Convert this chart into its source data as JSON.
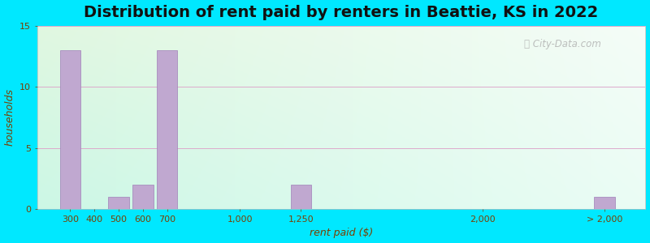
{
  "title": "Distribution of rent paid by renters in Beattie, KS in 2022",
  "xlabel": "rent paid ($)",
  "ylabel": "households",
  "categories": [
    "300",
    "400",
    "500",
    "600",
    "700",
    "1,000",
    "1,250",
    "2,000",
    "> 2,000"
  ],
  "values": [
    13,
    0,
    1,
    2,
    13,
    0,
    2,
    0,
    1
  ],
  "bar_color": "#c0a8d0",
  "bar_edge_color": "#a080b8",
  "ylim": [
    0,
    15
  ],
  "yticks": [
    0,
    5,
    10,
    15
  ],
  "background_outer": "#00e8ff",
  "bg_topleft": [
    0.88,
    0.97,
    0.88
  ],
  "bg_topright": [
    0.96,
    0.99,
    0.97
  ],
  "bg_bottomleft": [
    0.8,
    0.97,
    0.9
  ],
  "bg_bottomright": [
    0.92,
    0.99,
    0.96
  ],
  "title_fontsize": 14,
  "axis_label_fontsize": 9,
  "tick_fontsize": 8,
  "tick_color": "#7B3F00",
  "label_color": "#7B3F00",
  "grid_color": "#ddaacc",
  "watermark_color": "#aaaaaa"
}
